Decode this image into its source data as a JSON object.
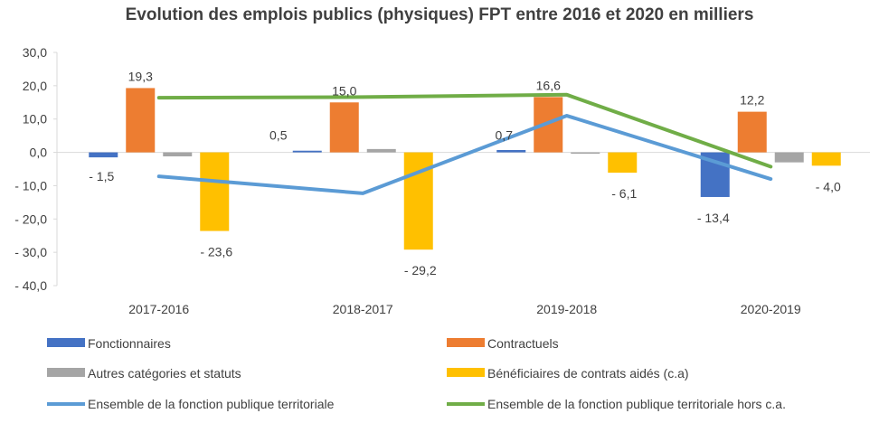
{
  "chart_data": {
    "type": "bar",
    "title": "Evolution des emplois publics (physiques) FPT entre 2016 et 2020 en milliers",
    "categories": [
      "2017-2016",
      "2018-2017",
      "2019-2018",
      "2020-2019"
    ],
    "ylim": [
      -40,
      30
    ],
    "yticks": [
      "30,0",
      "20,0",
      "10,0",
      "0,0",
      "- 10,0",
      "- 20,0",
      "- 30,0",
      "- 40,0"
    ],
    "grid": false,
    "legend_position": "bottom",
    "series": [
      {
        "name": "Fonctionnaires",
        "kind": "bar",
        "color": "#4472c4",
        "values": [
          -1.5,
          0.5,
          0.7,
          -13.4
        ],
        "labels": [
          "- 1,5",
          "0,5",
          "0,7",
          "- 13,4"
        ]
      },
      {
        "name": "Contractuels",
        "kind": "bar",
        "color": "#ed7d31",
        "values": [
          19.3,
          15.0,
          16.6,
          12.2
        ],
        "labels": [
          "19,3",
          "15,0",
          "16,6",
          "12,2"
        ]
      },
      {
        "name": "Autres catégories et statuts",
        "kind": "bar",
        "color": "#a5a5a5",
        "values": [
          -1.2,
          1.0,
          0.0,
          -3.0
        ],
        "labels": [
          "",
          "",
          "",
          ""
        ]
      },
      {
        "name": "Bénéficiaires de contrats aidés (c.a)",
        "kind": "bar",
        "color": "#ffc000",
        "values": [
          -23.6,
          -29.2,
          -6.1,
          -4.0
        ],
        "labels": [
          "- 23,6",
          "- 29,2",
          "- 6,1",
          "- 4,0"
        ]
      },
      {
        "name": "Ensemble de la fonction publique territoriale",
        "kind": "line",
        "color": "#5b9bd5",
        "values": [
          -7.2,
          -12.3,
          11.0,
          -8.0
        ]
      },
      {
        "name": "Ensemble de la fonction publique territoriale hors c.a.",
        "kind": "line",
        "color": "#70ad47",
        "values": [
          16.4,
          16.6,
          17.3,
          -4.3
        ]
      }
    ]
  }
}
